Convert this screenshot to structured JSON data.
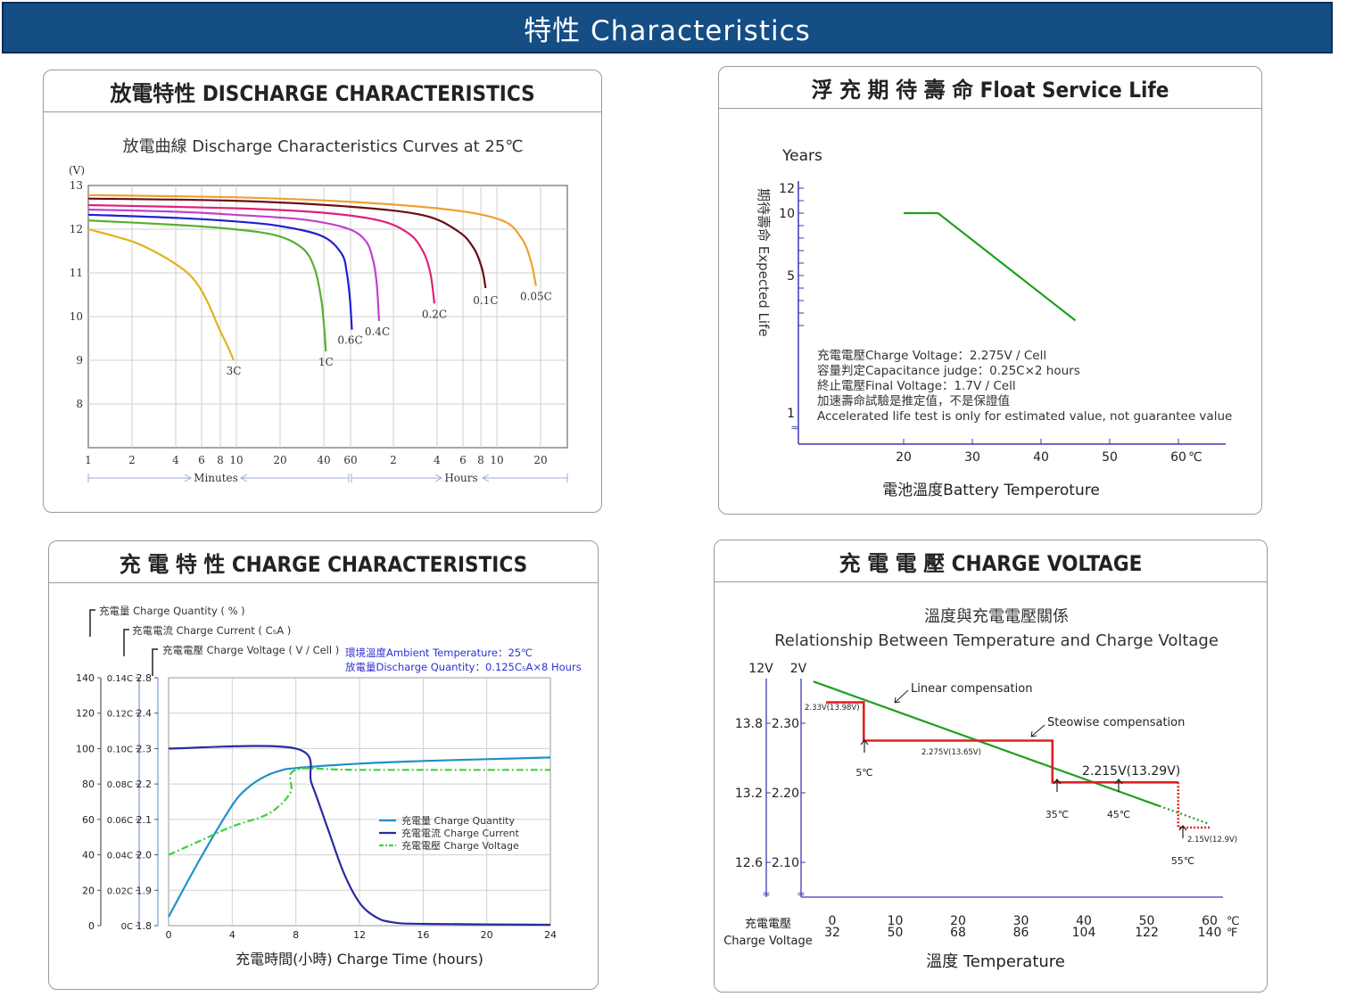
{
  "banner": {
    "title": "特性  Characteristics"
  },
  "colors": {
    "banner": "#154d85",
    "grid": "#c8c8c8",
    "axis_blue": "#3a3aa8"
  },
  "panels": {
    "discharge": {
      "title": "放電特性 DISCHARGE CHARACTERISTICS"
    },
    "float_life": {
      "title": "浮 充 期 待 壽 命 Float Service Life"
    },
    "charge": {
      "title": "充 電 特 性  CHARGE CHARACTERISTICS"
    },
    "voltage": {
      "title": "充 電 電 壓  CHARGE VOLTAGE"
    }
  },
  "chart_data": [
    {
      "id": "discharge",
      "type": "line",
      "title": "放電曲線 Discharge Characteristics Curves at 25℃",
      "ylabel": "(V)",
      "ylim": [
        7,
        13
      ],
      "yticks": [
        "13",
        "12",
        "11",
        "10",
        "9",
        "8"
      ],
      "xscale": "log",
      "xticks": [
        "1",
        "2",
        "4",
        "6",
        "8",
        "10",
        "20",
        "40",
        "60",
        "2",
        "4",
        "6",
        "8",
        "10",
        "20"
      ],
      "x_axis_labels": {
        "minutes": "Minutes",
        "hours": "Hours"
      },
      "series": [
        {
          "name": "3C",
          "color": "#e5b020",
          "end_minutes": 10,
          "end_volts": 9.0,
          "points": [
            [
              1,
              12.0
            ],
            [
              2,
              11.72
            ],
            [
              3,
              11.45
            ],
            [
              4,
              11.2
            ],
            [
              5,
              10.95
            ],
            [
              6,
              10.6
            ],
            [
              7,
              10.15
            ],
            [
              8,
              9.7
            ],
            [
              9,
              9.35
            ],
            [
              10,
              9.0
            ]
          ]
        },
        {
          "name": "1C",
          "color": "#55b030",
          "end_minutes": 43,
          "end_volts": 9.2,
          "points": [
            [
              1,
              12.2
            ],
            [
              4,
              12.1
            ],
            [
              10,
              12.0
            ],
            [
              20,
              11.85
            ],
            [
              30,
              11.55
            ],
            [
              36,
              11.1
            ],
            [
              40,
              10.4
            ],
            [
              42,
              9.7
            ],
            [
              43,
              9.2
            ]
          ]
        },
        {
          "name": "0.6C",
          "color": "#2020d0",
          "end_minutes": 65,
          "end_volts": 9.7,
          "points": [
            [
              1,
              12.33
            ],
            [
              4,
              12.26
            ],
            [
              10,
              12.18
            ],
            [
              20,
              12.08
            ],
            [
              40,
              11.85
            ],
            [
              55,
              11.45
            ],
            [
              60,
              11.0
            ],
            [
              63,
              10.4
            ],
            [
              65,
              9.7
            ]
          ]
        },
        {
          "name": "0.4C",
          "color": "#c040d0",
          "end_minutes": 100,
          "end_volts": 9.9,
          "points": [
            [
              1,
              12.45
            ],
            [
              4,
              12.4
            ],
            [
              10,
              12.33
            ],
            [
              30,
              12.22
            ],
            [
              60,
              12.02
            ],
            [
              80,
              11.75
            ],
            [
              90,
              11.35
            ],
            [
              96,
              10.8
            ],
            [
              100,
              9.9
            ]
          ]
        },
        {
          "name": "0.2C",
          "color": "#e0207a",
          "end_minutes": 240,
          "end_volts": 10.3,
          "points": [
            [
              1,
              12.55
            ],
            [
              10,
              12.48
            ],
            [
              40,
              12.38
            ],
            [
              100,
              12.2
            ],
            [
              160,
              11.9
            ],
            [
              200,
              11.5
            ],
            [
              225,
              11.0
            ],
            [
              240,
              10.3
            ]
          ]
        },
        {
          "name": "0.1C",
          "color": "#6a0d14",
          "end_minutes": 540,
          "end_volts": 10.65,
          "points": [
            [
              1,
              12.7
            ],
            [
              10,
              12.65
            ],
            [
              60,
              12.52
            ],
            [
              200,
              12.32
            ],
            [
              350,
              11.95
            ],
            [
              450,
              11.55
            ],
            [
              510,
              11.1
            ],
            [
              540,
              10.65
            ]
          ]
        },
        {
          "name": "0.05C",
          "color": "#f0a030",
          "end_minutes": 1200,
          "end_volts": 10.7,
          "points": [
            [
              1,
              12.78
            ],
            [
              10,
              12.73
            ],
            [
              60,
              12.63
            ],
            [
              300,
              12.45
            ],
            [
              700,
              12.2
            ],
            [
              950,
              11.8
            ],
            [
              1100,
              11.3
            ],
            [
              1200,
              10.7
            ]
          ]
        }
      ]
    },
    {
      "id": "float_life",
      "type": "line",
      "ylabel_top": "Years",
      "ylabel_side": "期待壽命 Expected Life",
      "xlabel": "電池溫度Battery Temperoture",
      "x_unit": "℃",
      "xticks": [
        "20",
        "30",
        "40",
        "50",
        "60"
      ],
      "yticks": [
        "12",
        "10",
        "5",
        "1"
      ],
      "series": [
        {
          "color": "#20a020",
          "points": [
            [
              20,
              10
            ],
            [
              25,
              10
            ],
            [
              45,
              1.4
            ]
          ]
        }
      ],
      "notes": [
        "充電電壓Charge Voltage：2.275V / Cell",
        "容量判定Capacitance judge：0.25C×2 hours",
        "終止電壓Final Voltage：1.7V / Cell",
        "加速壽命試驗是推定值，不是保證值",
        "Accelerated life test is only for estimated value, not guarantee value"
      ]
    },
    {
      "id": "charge",
      "type": "line",
      "axis_titles": {
        "quantity": "充電量  Charge Quantity ( % )",
        "current": "充電電流  Charge Current ( C₅A )",
        "voltage": "充電電壓  Charge Voltage ( V / Cell )"
      },
      "conditions": [
        "環境溫度Ambient Temperature：25℃",
        "放電量Discharge Quantity：0.125C₅A×8 Hours"
      ],
      "yticks_quantity": [
        "140",
        "120",
        "100",
        "80",
        "60",
        "40",
        "20",
        "0"
      ],
      "yticks_current": [
        "0.14C",
        "0.12C",
        "0.10C",
        "0.08C",
        "0.06C",
        "0.04C",
        "0.02C",
        "0C"
      ],
      "yticks_voltage": [
        "2.8",
        "2.4",
        "2.3",
        "2.2",
        "2.1",
        "2.0",
        "1.9",
        "1.8"
      ],
      "xticks": [
        "0",
        "4",
        "8",
        "12",
        "16",
        "20",
        "24"
      ],
      "xlabel": "充電時間(小時)  Charge Time (hours)",
      "legend": [
        {
          "label": "充電量     Charge Quantity",
          "color": "#2090c8",
          "dash": ""
        },
        {
          "label": "充電電流 Charge Current",
          "color": "#2a2aa0",
          "dash": ""
        },
        {
          "label": "充電電壓 Charge Voltage",
          "color": "#40d040",
          "dash": "8,3,2,3"
        }
      ],
      "series": [
        {
          "name": "Charge Quantity",
          "color": "#2090c8",
          "points": [
            [
              0,
              5
            ],
            [
              2,
              38
            ],
            [
              4,
              68
            ],
            [
              5,
              78
            ],
            [
              6,
              84
            ],
            [
              7,
              87.5
            ],
            [
              8,
              89
            ],
            [
              12,
              91.5
            ],
            [
              16,
              93
            ],
            [
              20,
              94
            ],
            [
              24,
              95
            ]
          ]
        },
        {
          "name": "Charge Current",
          "color": "#2a2aa0",
          "points": [
            [
              0,
              100
            ],
            [
              8,
              100
            ],
            [
              9,
              80
            ],
            [
              10,
              55
            ],
            [
              11,
              30
            ],
            [
              12,
              13
            ],
            [
              13,
              5
            ],
            [
              14,
              2
            ],
            [
              16,
              1
            ],
            [
              24,
              0.5
            ]
          ]
        },
        {
          "name": "Charge Voltage",
          "color": "#40d040",
          "dash": "8,3,2,3",
          "points": [
            [
              0,
              40
            ],
            [
              2,
              48
            ],
            [
              4,
              56
            ],
            [
              6,
              62
            ],
            [
              7,
              68
            ],
            [
              7.7,
              76
            ],
            [
              8,
              88
            ],
            [
              12,
              88
            ],
            [
              24,
              88
            ]
          ]
        }
      ]
    },
    {
      "id": "voltage",
      "type": "line",
      "title_cn": "溫度與充電電壓關係",
      "title_en": "Relationship Between Temperature and Charge Voltage",
      "yaxis_12v": {
        "label": "12V",
        "ticks": [
          "13.8",
          "13.2",
          "12.6"
        ]
      },
      "yaxis_2v": {
        "label": "2V",
        "ticks": [
          "2.30",
          "2.20",
          "2.10"
        ]
      },
      "ylabel": [
        "充電電壓",
        "Charge Voltage"
      ],
      "xticks_c": [
        "0",
        "10",
        "20",
        "30",
        "40",
        "50",
        "60"
      ],
      "xticks_f": [
        "32",
        "50",
        "68",
        "86",
        "104",
        "122",
        "140"
      ],
      "x_units": [
        "℃",
        "℉"
      ],
      "xlabel": "溫度   Temperature",
      "linear_label": "Linear compensation",
      "step_label": "Steowise compensation",
      "step_annotations": [
        "2.33V(13.98V)",
        "2.275V(13.65V)",
        "2.215V(13.29V)",
        "2.15V(12.9V)"
      ],
      "temperature_marks": [
        "5℃",
        "35℃",
        "45℃",
        "55℃"
      ],
      "linear_series": {
        "color": "#20a020",
        "points": [
          [
            -3,
            2.36
          ],
          [
            60,
            2.155
          ]
        ]
      },
      "step_series": {
        "color": "#e02020",
        "points": [
          [
            -1,
            2.33
          ],
          [
            5,
            2.33
          ],
          [
            5,
            2.275
          ],
          [
            35,
            2.275
          ],
          [
            35,
            2.215
          ],
          [
            55,
            2.215
          ],
          [
            55,
            2.15
          ],
          [
            60,
            2.15
          ]
        ]
      }
    }
  ]
}
